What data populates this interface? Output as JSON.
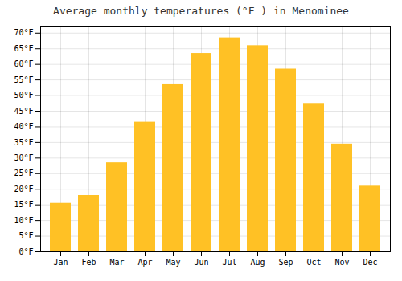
{
  "chart_data": {
    "type": "bar",
    "title": "Average monthly temperatures (°F ) in Menominee",
    "categories": [
      "Jan",
      "Feb",
      "Mar",
      "Apr",
      "May",
      "Jun",
      "Jul",
      "Aug",
      "Sep",
      "Oct",
      "Nov",
      "Dec"
    ],
    "values": [
      15.5,
      18.0,
      28.5,
      41.5,
      53.5,
      63.5,
      68.5,
      66.0,
      58.5,
      47.5,
      34.5,
      21.0
    ],
    "color": "#FFC125",
    "ylim": [
      0,
      72
    ],
    "yticks": [
      {
        "value": 0,
        "label": "0°F"
      },
      {
        "value": 5,
        "label": "5°F"
      },
      {
        "value": 10,
        "label": "10°F"
      },
      {
        "value": 15,
        "label": "15°F"
      },
      {
        "value": 20,
        "label": "20°F"
      },
      {
        "value": 25,
        "label": "25°F"
      },
      {
        "value": 30,
        "label": "30°F"
      },
      {
        "value": 35,
        "label": "35°F"
      },
      {
        "value": 40,
        "label": "40°F"
      },
      {
        "value": 45,
        "label": "45°F"
      },
      {
        "value": 50,
        "label": "50°F"
      },
      {
        "value": 55,
        "label": "55°F"
      },
      {
        "value": 60,
        "label": "60°F"
      },
      {
        "value": 65,
        "label": "65°F"
      },
      {
        "value": 70,
        "label": "70°F"
      }
    ],
    "grid": true
  }
}
